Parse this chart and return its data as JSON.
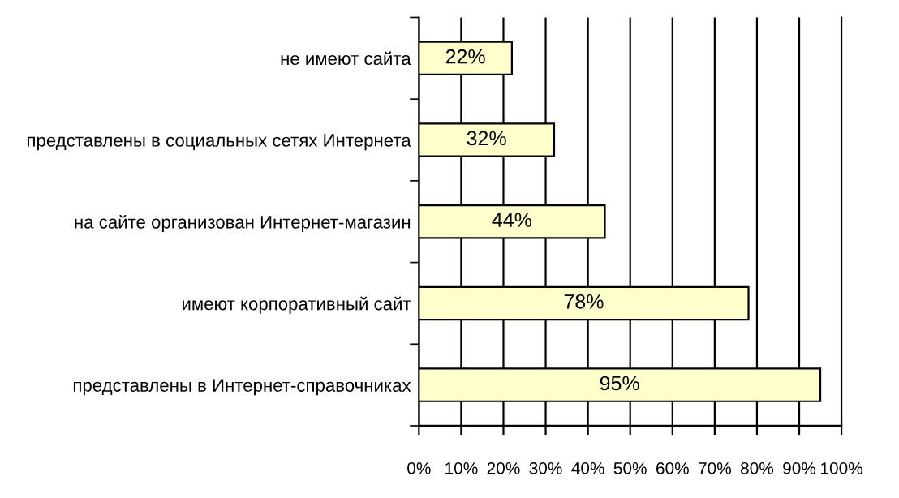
{
  "chart_data": {
    "type": "bar",
    "orientation": "horizontal",
    "categories": [
      "не имеют сайта",
      "представлены в социальных сетях Интернета",
      "на сайте организован Интернет-магазин",
      "имеют корпоративный сайт",
      "представлены в Интернет-справочниках"
    ],
    "values": [
      22,
      32,
      44,
      78,
      95
    ],
    "value_labels": [
      "22%",
      "32%",
      "44%",
      "78%",
      "95%"
    ],
    "color": "#ffffcc",
    "xlim": [
      0,
      100
    ],
    "xticks": [
      {
        "value": 0,
        "label": "0%"
      },
      {
        "value": 10,
        "label": "10%"
      },
      {
        "value": 20,
        "label": "20%"
      },
      {
        "value": 30,
        "label": "30%"
      },
      {
        "value": 40,
        "label": "40%"
      },
      {
        "value": 50,
        "label": "50%"
      },
      {
        "value": 60,
        "label": "60%"
      },
      {
        "value": 70,
        "label": "70%"
      },
      {
        "value": 80,
        "label": "80%"
      },
      {
        "value": 90,
        "label": "90%"
      },
      {
        "value": 100,
        "label": "100%"
      }
    ],
    "grid": "x",
    "legend": false
  }
}
